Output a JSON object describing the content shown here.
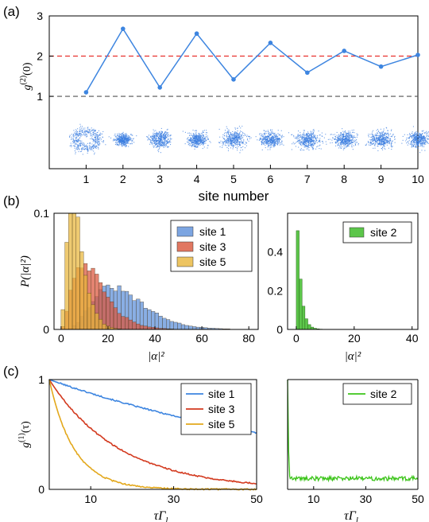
{
  "chart_data": [
    {
      "panel": "(a)",
      "type": "line",
      "x": [
        1,
        2,
        3,
        4,
        5,
        6,
        7,
        8,
        9,
        10
      ],
      "series": [
        {
          "values": [
            1.1,
            2.68,
            1.22,
            2.56,
            1.42,
            2.33,
            1.59,
            2.13,
            1.74,
            2.03
          ],
          "color": "#3d85e0"
        }
      ],
      "reference_lines": [
        {
          "y": 2,
          "color": "#e8312e",
          "style": "dashed"
        },
        {
          "y": 1,
          "color": "#555555",
          "style": "dashed"
        }
      ],
      "xlabel": "site number",
      "ylabel": "g^(2)(0)",
      "xticks": [
        "1",
        "2",
        "3",
        "4",
        "5",
        "6",
        "7",
        "8",
        "9",
        "10"
      ],
      "yticks": [
        "1",
        "2",
        "3"
      ],
      "xlim": [
        0,
        10
      ],
      "ylim": [
        -0.8,
        3
      ],
      "insets": "per-site phase-space point clouds (sites 1, 3 ring-shaped; others Gaussian blobs)"
    },
    {
      "panel": "(b)",
      "type": "bar",
      "xlabel": "|α|²",
      "ylabel": "P(|α|²)",
      "yticks": [
        "0",
        "0.1"
      ],
      "xticks": [
        "0",
        "20",
        "40",
        "60",
        "80"
      ],
      "xlim": [
        -3,
        84
      ],
      "ylim": [
        0,
        0.1
      ],
      "legend": "top-right",
      "series": [
        {
          "name": "site 1",
          "color": "#5b8fd9",
          "mean": 27,
          "sd": 12
        },
        {
          "name": "site 3",
          "color": "#d9553a",
          "mean": 14,
          "sd": 8
        },
        {
          "name": "site 5",
          "color": "#e8b53a",
          "mean": 7,
          "sd": 4
        }
      ]
    },
    {
      "panel": "(b)-right",
      "type": "bar",
      "xlabel": "|α|²",
      "yticks": [
        "0",
        "0.2",
        "0.4"
      ],
      "xticks": [
        "0",
        "20",
        "40"
      ],
      "xlim": [
        -3,
        42
      ],
      "ylim": [
        0,
        0.6
      ],
      "legend": "top-right",
      "series": [
        {
          "name": "site 2",
          "color": "#5cc64a",
          "bins": [
            0,
            1,
            2,
            3,
            4,
            5,
            6,
            7,
            8,
            9
          ],
          "values": [
            0.51,
            0.26,
            0.12,
            0.055,
            0.025,
            0.012,
            0.006,
            0.003,
            0.0015,
            0.0008
          ]
        }
      ]
    },
    {
      "panel": "(c)",
      "type": "line",
      "xlabel": "τΓ_l",
      "ylabel": "g^(1)(τ)",
      "yticks": [
        "0",
        "1"
      ],
      "xticks": [
        "10",
        "30",
        "50"
      ],
      "xlim": [
        0,
        50
      ],
      "ylim": [
        0,
        1
      ],
      "legend": "top-right",
      "series": [
        {
          "name": "site 1",
          "color": "#3d85e0",
          "decay_time": 75
        },
        {
          "name": "site 3",
          "color": "#d33a1f",
          "decay_time": 17
        },
        {
          "name": "site 5",
          "color": "#e3a81c",
          "decay_time": 6
        }
      ]
    },
    {
      "panel": "(c)-right",
      "type": "line",
      "xlabel": "τΓ_l",
      "xticks": [
        "10",
        "30",
        "50"
      ],
      "xlim": [
        0,
        50
      ],
      "ylim": [
        0,
        1
      ],
      "legend": "top-right",
      "series": [
        {
          "name": "site 2",
          "color": "#3cc41a",
          "plateau": 0.1
        }
      ]
    }
  ],
  "labels": {
    "panel_a": "(a)",
    "panel_b": "(b)",
    "panel_c": "(c)"
  }
}
